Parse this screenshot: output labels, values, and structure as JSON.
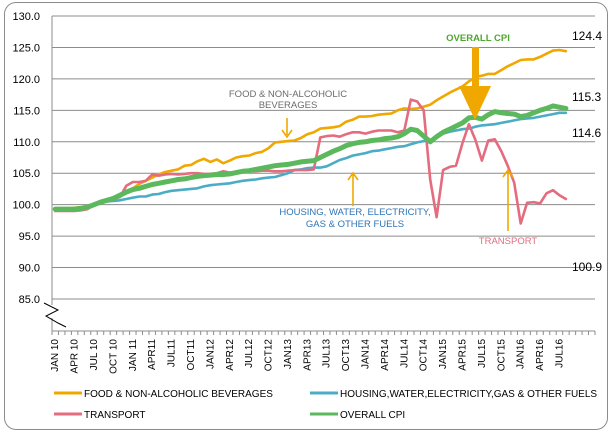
{
  "chart_data": {
    "type": "line",
    "title": "",
    "xlabel": "",
    "ylabel": "",
    "ylim": [
      85,
      130
    ],
    "y_ticks": [
      "130.0",
      "125.0",
      "120.0",
      "115.0",
      "110.0",
      "105.0",
      "100.0",
      "95.0",
      "90.0",
      "85.0"
    ],
    "y_tick_values": [
      130,
      125,
      120,
      115,
      110,
      105,
      100,
      95,
      90,
      85
    ],
    "grid": true,
    "axis_break": true,
    "x_tick_labels": [
      "JAN 10",
      "APR 10",
      "JUL 10",
      "OCT 10",
      "JAN 11",
      "APR11",
      "JUL11",
      "OCT11",
      "JAN12",
      "APR12",
      "JUL12",
      "OCT12",
      "JAN13",
      "APR13",
      "JUL13",
      "OCT13",
      "JAN14",
      "APR14",
      "JUL14",
      "OCT14",
      "JAN15",
      "APR15",
      "JUL15",
      "OCT15",
      "JAN16",
      "APR16",
      "JUL16"
    ],
    "legend_position": "bottom",
    "series": [
      {
        "name": "FOOD & NON-ALCOHOLIC BEVERAGES",
        "color": "#F0A800",
        "values": [
          99.4,
          99.4,
          99.4,
          99.5,
          99.6,
          99.8,
          100.0,
          100.3,
          100.6,
          100.9,
          101.3,
          102.0,
          102.6,
          103.3,
          103.8,
          104.3,
          104.8,
          105.2,
          105.4,
          105.6,
          106.2,
          106.3,
          106.9,
          107.3,
          106.8,
          107.2,
          106.6,
          107.0,
          107.5,
          107.7,
          107.8,
          108.2,
          108.4,
          109.0,
          109.9,
          110.0,
          110.1,
          110.2,
          110.6,
          111.2,
          111.5,
          112.1,
          112.2,
          112.3,
          112.5,
          113.2,
          113.5,
          114.0,
          114.0,
          114.1,
          114.3,
          114.4,
          114.5,
          115.0,
          115.3,
          115.2,
          115.3,
          115.6,
          115.9,
          116.6,
          117.2,
          117.8,
          118.3,
          118.8,
          119.6,
          120.3,
          120.5,
          120.8,
          120.8,
          121.4,
          122.0,
          122.5,
          123.0,
          123.1,
          123.1,
          123.5,
          124.0,
          124.5,
          124.6,
          124.4
        ],
        "end_label": "124.4"
      },
      {
        "name": "HOUSING,WATER,ELECTRICITY,GAS & OTHER FUELS",
        "color": "#4BACC6",
        "values": [
          99.3,
          99.3,
          99.3,
          99.3,
          99.5,
          99.8,
          100.1,
          100.3,
          100.5,
          100.6,
          100.7,
          100.9,
          101.1,
          101.3,
          101.3,
          101.6,
          101.7,
          102.0,
          102.2,
          102.3,
          102.4,
          102.5,
          102.6,
          102.9,
          103.1,
          103.2,
          103.3,
          103.4,
          103.6,
          103.8,
          103.9,
          104.0,
          104.2,
          104.3,
          104.4,
          104.7,
          105.0,
          105.5,
          105.6,
          105.8,
          105.9,
          105.9,
          106.1,
          106.6,
          107.1,
          107.4,
          107.8,
          108.0,
          108.2,
          108.5,
          108.6,
          108.8,
          109.0,
          109.2,
          109.3,
          109.6,
          109.9,
          110.1,
          110.2,
          110.8,
          111.3,
          111.6,
          111.8,
          112.0,
          112.1,
          112.4,
          112.6,
          112.7,
          112.8,
          113.0,
          113.2,
          113.4,
          113.6,
          113.7,
          113.8,
          114.0,
          114.2,
          114.4,
          114.6,
          114.6
        ],
        "end_label": "114.6"
      },
      {
        "name": "TRANSPORT",
        "color": "#E46C7E",
        "values": [
          99.0,
          99.0,
          99.0,
          99.0,
          99.1,
          99.3,
          100.0,
          100.6,
          100.8,
          100.9,
          101.2,
          103.0,
          103.6,
          103.6,
          103.8,
          104.8,
          104.6,
          104.8,
          104.9,
          104.8,
          104.9,
          105.0,
          105.0,
          104.9,
          104.9,
          105.0,
          105.3,
          105.1,
          105.2,
          105.4,
          105.3,
          105.3,
          105.4,
          105.4,
          105.3,
          105.3,
          105.4,
          105.5,
          105.5,
          105.5,
          105.6,
          110.7,
          110.9,
          111.0,
          110.8,
          111.2,
          111.5,
          111.5,
          111.3,
          111.6,
          111.8,
          111.8,
          111.8,
          111.5,
          111.8,
          116.7,
          116.4,
          115.0,
          104.0,
          98.0,
          105.5,
          106.0,
          106.2,
          109.8,
          112.8,
          110.3,
          107.0,
          110.2,
          110.4,
          108.5,
          106.2,
          103.5,
          97.0,
          100.3,
          100.4,
          100.2,
          101.8,
          102.3,
          101.5,
          100.9
        ],
        "end_label": "100.9"
      },
      {
        "name": "OVERALL CPI",
        "color": "#5CB85C",
        "values": [
          99.3,
          99.3,
          99.3,
          99.3,
          99.4,
          99.6,
          100.0,
          100.4,
          100.7,
          101.0,
          101.5,
          102.0,
          102.4,
          102.6,
          102.9,
          103.2,
          103.4,
          103.6,
          103.8,
          104.0,
          104.1,
          104.3,
          104.5,
          104.6,
          104.7,
          104.8,
          104.8,
          104.9,
          105.1,
          105.3,
          105.4,
          105.6,
          105.8,
          106.0,
          106.2,
          106.3,
          106.4,
          106.6,
          106.8,
          106.9,
          107.0,
          107.5,
          108.0,
          108.5,
          108.9,
          109.4,
          109.7,
          109.9,
          110.0,
          110.2,
          110.3,
          110.5,
          110.6,
          110.8,
          111.3,
          112.0,
          111.8,
          110.9,
          110.0,
          110.8,
          111.5,
          112.0,
          112.5,
          113.0,
          113.8,
          113.9,
          113.6,
          114.3,
          114.8,
          114.6,
          114.5,
          114.4,
          114.0,
          114.2,
          114.6,
          115.0,
          115.3,
          115.7,
          115.5,
          115.3
        ],
        "end_label": "115.3"
      }
    ],
    "annotations": [
      {
        "text_lines": [
          "FOOD & NON-ALCOHOLIC",
          "BEVERAGES"
        ],
        "color": "#6B6B6B",
        "arrow": "down"
      },
      {
        "text_lines": [
          "HOUSING, WATER, ELECTRICITY,",
          "GAS & OTHER FUELS"
        ],
        "color": "#2E75B6",
        "arrow": "up"
      },
      {
        "text_lines": [
          "OVERALL CPI"
        ],
        "color": "#4EA72E",
        "arrow": "down-bold"
      },
      {
        "text_lines": [
          "TRANSPORT"
        ],
        "color": "#E46C7E",
        "arrow": "up"
      }
    ]
  }
}
